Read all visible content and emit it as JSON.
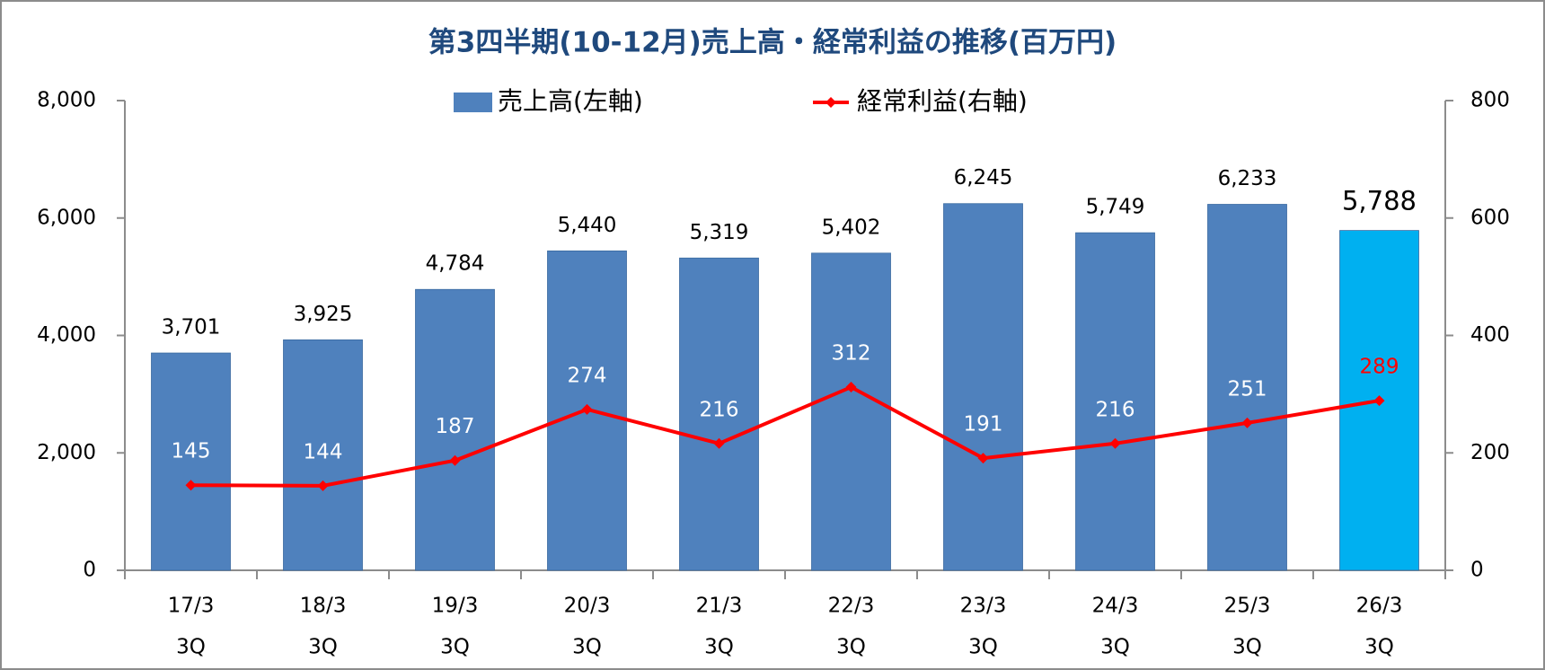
{
  "chart_data": {
    "type": "bar",
    "title": "第3四半期(10-12月)売上高・経常利益の推移(百万円)",
    "categories": [
      [
        "17/3",
        "3Q"
      ],
      [
        "18/3",
        "3Q"
      ],
      [
        "19/3",
        "3Q"
      ],
      [
        "20/3",
        "3Q"
      ],
      [
        "21/3",
        "3Q"
      ],
      [
        "22/3",
        "3Q"
      ],
      [
        "23/3",
        "3Q"
      ],
      [
        "24/3",
        "3Q"
      ],
      [
        "25/3",
        "3Q"
      ],
      [
        "26/3",
        "3Q"
      ]
    ],
    "series": [
      {
        "name": "売上高(左軸)",
        "type": "bar",
        "color": "#4f81bd",
        "colors": [
          "#4f81bd",
          "#4f81bd",
          "#4f81bd",
          "#4f81bd",
          "#4f81bd",
          "#4f81bd",
          "#4f81bd",
          "#4f81bd",
          "#4f81bd",
          "#00b0f0"
        ],
        "values": [
          3701,
          3925,
          4784,
          5440,
          5319,
          5402,
          6245,
          5749,
          6233,
          5788
        ],
        "value_labels": [
          "3,701",
          "3,925",
          "4,784",
          "5,440",
          "5,319",
          "5,402",
          "6,245",
          "5,749",
          "6,233",
          "5,788"
        ]
      },
      {
        "name": "経常利益(右軸)",
        "type": "line",
        "axis": "y2",
        "color": "#ff0000",
        "label_colors": [
          "#ffffff",
          "#ffffff",
          "#ffffff",
          "#ffffff",
          "#ffffff",
          "#ffffff",
          "#ffffff",
          "#ffffff",
          "#ffffff",
          "#ff0000"
        ],
        "values": [
          145,
          144,
          187,
          274,
          216,
          312,
          191,
          216,
          251,
          289
        ]
      }
    ],
    "ylim": [
      0,
      8000
    ],
    "yticks": [
      0,
      {
        "value": 2000,
        "label": "2,000"
      },
      {
        "value": 4000,
        "label": "4,000"
      },
      {
        "value": 6000,
        "label": "6,000"
      },
      {
        "value": 8000,
        "label": "8,000"
      }
    ],
    "y2lim": [
      0,
      800
    ],
    "y2ticks": [
      0,
      200,
      400,
      600,
      800
    ]
  }
}
